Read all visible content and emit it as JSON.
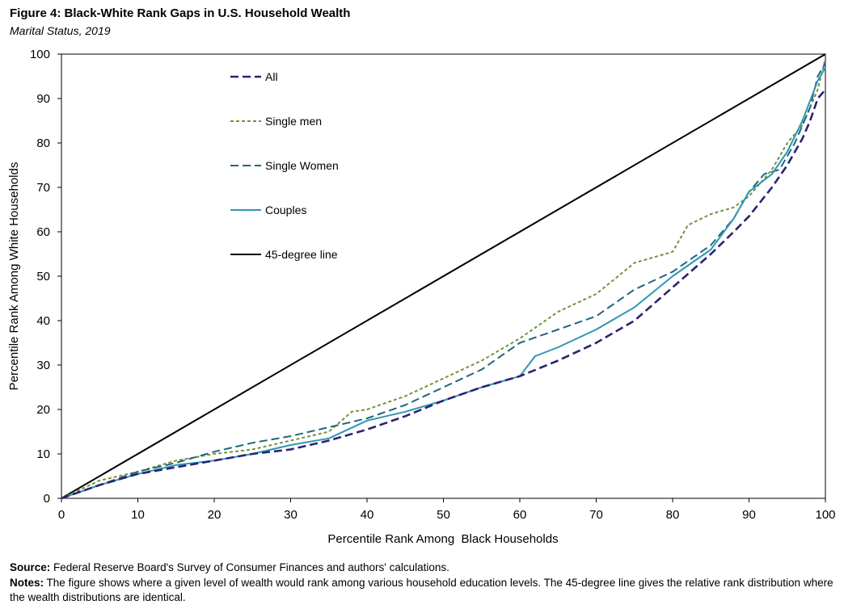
{
  "header": {
    "title": "Figure 4: Black-White Rank Gaps in U.S. Household Wealth",
    "subtitle": "Marital Status, 2019"
  },
  "footer": {
    "source_label": "Source:",
    "source_text": " Federal Reserve Board's Survey of Consumer Finances and authors' calculations.",
    "notes_label": "Notes:",
    "notes_text": " The figure shows where a given level of wealth would rank among various household education levels. The 45-degree line gives the relative rank distribution where the wealth distributions are identical."
  },
  "chart_data": {
    "type": "line",
    "title": "Figure 4: Black-White Rank Gaps in U.S. Household Wealth",
    "subtitle": "Marital Status, 2019",
    "xlabel": "Percentile Rank Among  Black Households",
    "ylabel": "Percentile Rank Among White Households",
    "xlim": [
      0,
      100
    ],
    "ylim": [
      0,
      100
    ],
    "xticks": [
      0,
      10,
      20,
      30,
      40,
      50,
      60,
      70,
      80,
      90,
      100
    ],
    "yticks": [
      0,
      10,
      20,
      30,
      40,
      50,
      60,
      70,
      80,
      90,
      100
    ],
    "grid": false,
    "legend_position": "top-left inside plot",
    "series": [
      {
        "name": "All",
        "color": "#2b2272",
        "dash": "dashed",
        "x": [
          0,
          5,
          10,
          15,
          20,
          25,
          30,
          35,
          40,
          45,
          50,
          55,
          60,
          65,
          70,
          75,
          80,
          85,
          88,
          90,
          93,
          95,
          97,
          98,
          99,
          100
        ],
        "y": [
          0,
          3,
          5.5,
          7,
          8.5,
          10,
          11,
          13,
          15.5,
          18.5,
          22,
          25,
          27.5,
          31,
          35,
          40,
          47.5,
          55,
          60,
          63.5,
          70,
          75,
          81,
          85,
          90,
          92
        ]
      },
      {
        "name": "Single men",
        "color": "#76923c",
        "dash": "dotted",
        "x": [
          0,
          5,
          10,
          15,
          20,
          25,
          30,
          35,
          38,
          40,
          45,
          50,
          55,
          60,
          65,
          70,
          75,
          80,
          82,
          85,
          88,
          90,
          93,
          95,
          97,
          99,
          100
        ],
        "y": [
          0,
          4,
          6,
          8.5,
          10,
          11,
          13,
          15,
          19.5,
          20,
          23,
          27,
          31,
          36,
          42,
          46,
          53,
          55.5,
          61.5,
          64,
          65.5,
          68,
          74,
          80,
          84,
          92,
          99
        ]
      },
      {
        "name": "Single Women",
        "color": "#1f6680",
        "dash": "dashed",
        "x": [
          0,
          5,
          10,
          15,
          20,
          25,
          30,
          35,
          40,
          45,
          50,
          55,
          60,
          65,
          70,
          75,
          80,
          85,
          88,
          90,
          92,
          94,
          96,
          98,
          99,
          100
        ],
        "y": [
          0,
          3,
          6,
          8,
          10.5,
          12.5,
          14,
          16,
          18,
          21,
          25,
          29,
          35,
          38,
          41,
          47,
          51,
          57,
          63,
          69,
          73,
          74,
          80,
          88,
          95,
          98
        ]
      },
      {
        "name": "Couples",
        "color": "#2f96b4",
        "dash": "solid",
        "x": [
          0,
          5,
          10,
          15,
          20,
          25,
          30,
          35,
          40,
          45,
          50,
          55,
          60,
          62,
          65,
          70,
          75,
          80,
          85,
          88,
          90,
          93,
          95,
          97,
          99,
          100
        ],
        "y": [
          0,
          3,
          5.5,
          7.5,
          8.5,
          10,
          12,
          13.5,
          17.5,
          19.5,
          22,
          25,
          27.5,
          32,
          34,
          38,
          43,
          50,
          56,
          63,
          69,
          73,
          78,
          85,
          94,
          97
        ]
      },
      {
        "name": "45-degree line",
        "color": "#000000",
        "dash": "solid",
        "x": [
          0,
          100
        ],
        "y": [
          0,
          100
        ]
      }
    ]
  }
}
